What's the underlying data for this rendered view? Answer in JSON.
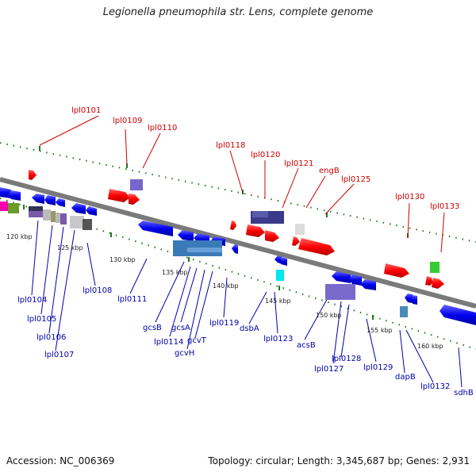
{
  "title": "Legionella pneumophila str. Lens, complete genome",
  "footer": {
    "accession": "Accession: NC_006369",
    "topology": "Topology: circular; Length: 3,345,687 bp; Genes: 2,931"
  },
  "colors": {
    "top_labels": "#cc0000",
    "bottom_labels": "#0000aa",
    "forward_genes": "#ff0000",
    "reverse_genes": "#0000ee",
    "dotted_track": "#1a7a1a"
  },
  "scale_labels": [
    "120 kbp",
    "125 kbp",
    "130 kbp",
    "135 kbp",
    "140 kbp",
    "145 kbp",
    "150 kbp",
    "155 kbp",
    "160 kbp"
  ],
  "top_labels": [
    "lpl0101",
    "lpl0109",
    "lpl0110",
    "lpl0118",
    "lpl0120",
    "lpl0121",
    "engB",
    "lpl0125",
    "lpl0130",
    "lpl0133"
  ],
  "bottom_labels": [
    "lpl0104",
    "lpl0105",
    "lpl0106",
    "lpl0107",
    "lpl0108",
    "lpl0111",
    "gcsB",
    "lpl0114",
    "gcsA",
    "gcvH",
    "gcvT",
    "lpl0119",
    "dsbA",
    "lpl0123",
    "acsB",
    "lpl0127",
    "lpl0128",
    "lpl0129",
    "dapB",
    "lpl0132",
    "sdhB"
  ]
}
